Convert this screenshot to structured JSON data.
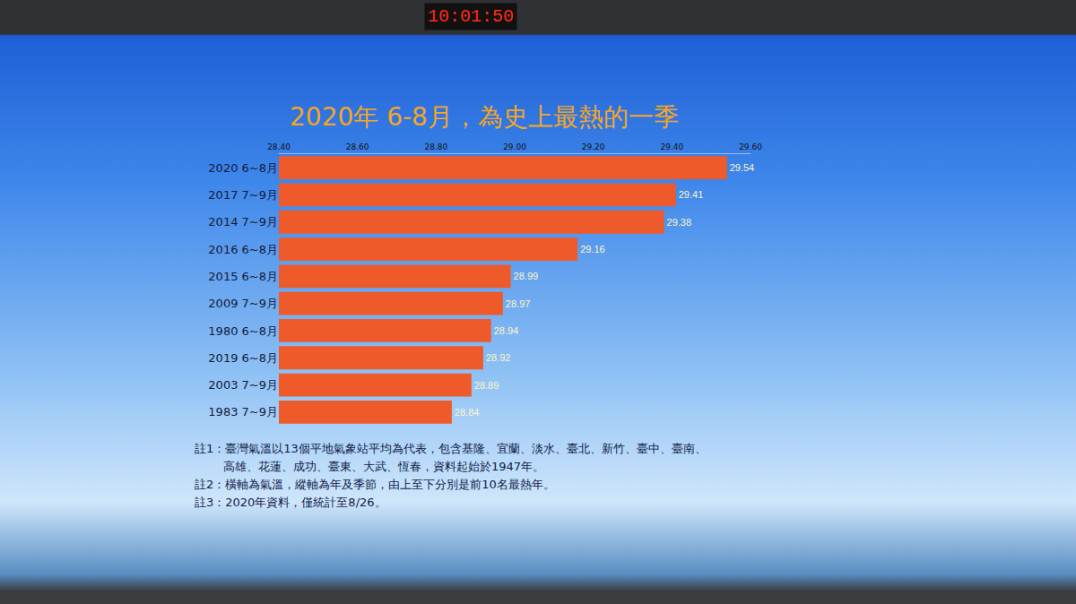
{
  "chart_data": {
    "type": "bar",
    "title": "2020年 6-8月，為史上最熱的一季",
    "orientation": "horizontal",
    "categories": [
      "2020 6~8月",
      "2017 7~9月",
      "2014 7~9月",
      "2016 6~8月",
      "2015 6~8月",
      "2009 7~9月",
      "1980 6~8月",
      "2019 6~8月",
      "2003 7~9月",
      "1983 7~9月"
    ],
    "values": [
      29.54,
      29.41,
      29.38,
      29.16,
      28.99,
      28.97,
      28.94,
      28.92,
      28.89,
      28.84
    ],
    "color": "#ee5a2a",
    "xlim": [
      28.4,
      29.6
    ],
    "xticks": [
      {
        "value": 28.4,
        "label": "28.40"
      },
      {
        "value": 28.6,
        "label": "28.60"
      },
      {
        "value": 28.8,
        "label": "28.80"
      },
      {
        "value": 29.0,
        "label": "29.00"
      },
      {
        "value": 29.2,
        "label": "29.20"
      },
      {
        "value": 29.4,
        "label": "29.40"
      },
      {
        "value": 29.6,
        "label": "29.60"
      }
    ],
    "grid": false,
    "data_labels": true,
    "clock": "10:01:50",
    "annotations": [
      "註1：臺灣氣溫以13個平地氣象站平均為代表，包含基隆、宜蘭、淡水、臺北、新竹、臺中、臺南、",
      "高雄、花蓮、成功、臺東、大武、恆春，資料起始於1947年。",
      "註2：橫軸為氣溫，縱軸為年及季節，由上至下分別是前10名最熱年。",
      "註3：2020年資料，僅統計至8/26。"
    ]
  }
}
